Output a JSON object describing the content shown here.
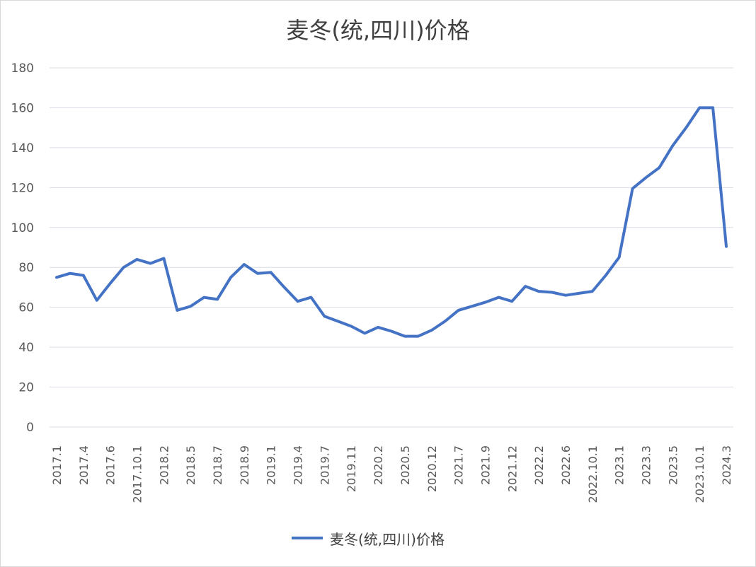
{
  "chart_data": {
    "type": "line",
    "title": "麦冬(统,四川)价格",
    "xlabel": "",
    "ylabel": "",
    "ylim": [
      0,
      180
    ],
    "yticks": [
      "0",
      "20",
      "40",
      "60",
      "80",
      "100",
      "120",
      "140",
      "160",
      "180"
    ],
    "grid": true,
    "legend_position": "bottom",
    "line_color": "#4472c4",
    "grid_color": "#d9dde6",
    "x_tick_labels": [
      "2017.1",
      "2017.4",
      "2017.6",
      "2017.10.1",
      "2018.2",
      "2018.5",
      "2018.7",
      "2018.9",
      "2019.1",
      "2019.4",
      "2019.7",
      "2019.11",
      "2020.2",
      "2020.5",
      "2020.12",
      "2021.7",
      "2021.9",
      "2021.12",
      "2022.2",
      "2022.6",
      "2022.10.1",
      "2023.1",
      "2023.3",
      "2023.5",
      "2023.10.1",
      "2024.3"
    ],
    "series": [
      {
        "name": "麦冬(统,四川)价格",
        "values": [
          75,
          77,
          76,
          63.5,
          72,
          80,
          84,
          82,
          84.5,
          58.5,
          60.5,
          65,
          64,
          75,
          81.5,
          77,
          77.5,
          70,
          63,
          65,
          55.5,
          53,
          50.5,
          47,
          50,
          48,
          45.5,
          45.5,
          48.5,
          53,
          58.5,
          60.5,
          62.5,
          65,
          63,
          70.5,
          68,
          67.5,
          66,
          67,
          68,
          76,
          85,
          119.5,
          125,
          130,
          141,
          150,
          160,
          160,
          90.5
        ]
      }
    ]
  }
}
